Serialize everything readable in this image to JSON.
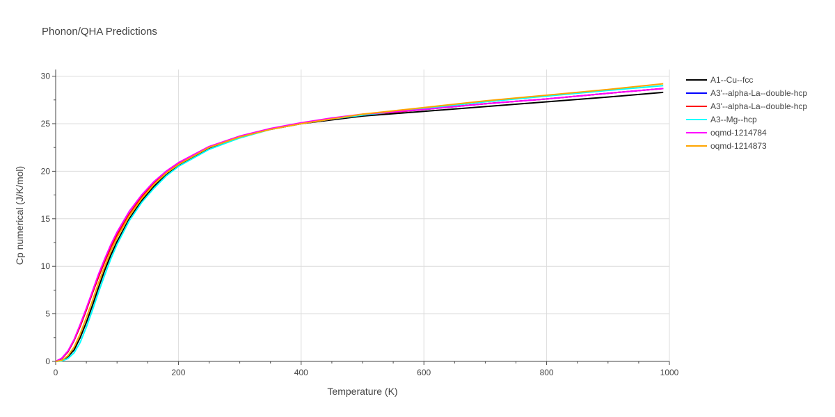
{
  "chart_data": {
    "type": "line",
    "title": "Phonon/QHA Predictions",
    "xlabel": "Temperature (K)",
    "ylabel": "Cp numerical (J/K/mol)",
    "xlim": [
      0,
      1000
    ],
    "ylim": [
      0,
      30.7
    ],
    "xticks": [
      0,
      200,
      400,
      600,
      800,
      1000
    ],
    "yticks": [
      0,
      5,
      10,
      15,
      20,
      25,
      30
    ],
    "grid": true,
    "legend_position": "right",
    "series": [
      {
        "name": "A1--Cu--fcc",
        "color": "#000000",
        "x": [
          0,
          10,
          20,
          30,
          40,
          50,
          60,
          70,
          80,
          90,
          100,
          120,
          140,
          160,
          180,
          200,
          250,
          300,
          350,
          400,
          450,
          500,
          600,
          700,
          800,
          900,
          990
        ],
        "y": [
          0,
          0.1,
          0.5,
          1.2,
          2.5,
          4.1,
          5.9,
          7.8,
          9.6,
          11.2,
          12.6,
          15.0,
          16.9,
          18.4,
          19.6,
          20.6,
          22.4,
          23.6,
          24.4,
          25.0,
          25.4,
          25.8,
          26.3,
          26.8,
          27.3,
          27.8,
          28.3
        ]
      },
      {
        "name": "A3'--alpha-La--double-hcp",
        "color": "#0000ff",
        "x": [
          0,
          10,
          20,
          30,
          40,
          50,
          60,
          70,
          80,
          90,
          100,
          120,
          140,
          160,
          180,
          200,
          250,
          300,
          350,
          400,
          450,
          500,
          600,
          700,
          800,
          900,
          990
        ],
        "y": [
          0,
          0.3,
          1.0,
          2.2,
          3.7,
          5.4,
          7.2,
          8.9,
          10.5,
          12.0,
          13.3,
          15.5,
          17.3,
          18.7,
          19.9,
          20.8,
          22.5,
          23.6,
          24.4,
          25.0,
          25.5,
          25.9,
          26.5,
          27.1,
          27.6,
          28.2,
          28.7
        ]
      },
      {
        "name": "A3'--alpha-La--double-hcp",
        "color": "#ff0000",
        "x": [
          0,
          10,
          20,
          30,
          40,
          50,
          60,
          70,
          80,
          90,
          100,
          120,
          140,
          160,
          180,
          200,
          250,
          300,
          350,
          400,
          450,
          500,
          600,
          700,
          800,
          900,
          990
        ],
        "y": [
          0,
          0.3,
          1.0,
          2.2,
          3.7,
          5.4,
          7.2,
          8.9,
          10.5,
          12.0,
          13.3,
          15.5,
          17.3,
          18.7,
          19.9,
          20.8,
          22.5,
          23.6,
          24.4,
          25.0,
          25.5,
          25.9,
          26.5,
          27.1,
          27.6,
          28.2,
          28.7
        ]
      },
      {
        "name": "A3--Mg--hcp",
        "color": "#00ffff",
        "x": [
          0,
          10,
          20,
          30,
          40,
          50,
          60,
          70,
          80,
          90,
          100,
          120,
          140,
          160,
          180,
          200,
          250,
          300,
          350,
          400,
          450,
          500,
          600,
          700,
          800,
          900,
          990
        ],
        "y": [
          0,
          0.05,
          0.3,
          0.9,
          2.0,
          3.6,
          5.4,
          7.3,
          9.1,
          10.8,
          12.3,
          14.8,
          16.7,
          18.2,
          19.5,
          20.5,
          22.3,
          23.5,
          24.4,
          25.0,
          25.5,
          25.9,
          26.6,
          27.3,
          27.9,
          28.5,
          29.0
        ]
      },
      {
        "name": "oqmd-1214784",
        "color": "#ff00ff",
        "x": [
          0,
          10,
          20,
          30,
          40,
          50,
          60,
          70,
          80,
          90,
          100,
          120,
          140,
          160,
          180,
          200,
          250,
          300,
          350,
          400,
          450,
          500,
          600,
          700,
          800,
          900,
          990
        ],
        "y": [
          0,
          0.35,
          1.1,
          2.3,
          3.9,
          5.6,
          7.4,
          9.2,
          10.8,
          12.3,
          13.6,
          15.8,
          17.5,
          18.9,
          20.0,
          20.9,
          22.6,
          23.7,
          24.5,
          25.1,
          25.6,
          26.0,
          26.5,
          27.1,
          27.6,
          28.2,
          28.7
        ]
      },
      {
        "name": "oqmd-1214873",
        "color": "#ffa500",
        "x": [
          0,
          10,
          20,
          30,
          40,
          50,
          60,
          70,
          80,
          90,
          100,
          120,
          140,
          160,
          180,
          200,
          250,
          300,
          350,
          400,
          450,
          500,
          600,
          700,
          800,
          900,
          990
        ],
        "y": [
          0,
          0.1,
          0.6,
          1.5,
          2.9,
          4.6,
          6.4,
          8.3,
          10.0,
          11.6,
          13.0,
          15.3,
          17.1,
          18.6,
          19.8,
          20.7,
          22.5,
          23.6,
          24.4,
          25.0,
          25.5,
          26.0,
          26.7,
          27.4,
          28.0,
          28.6,
          29.2
        ]
      }
    ]
  }
}
